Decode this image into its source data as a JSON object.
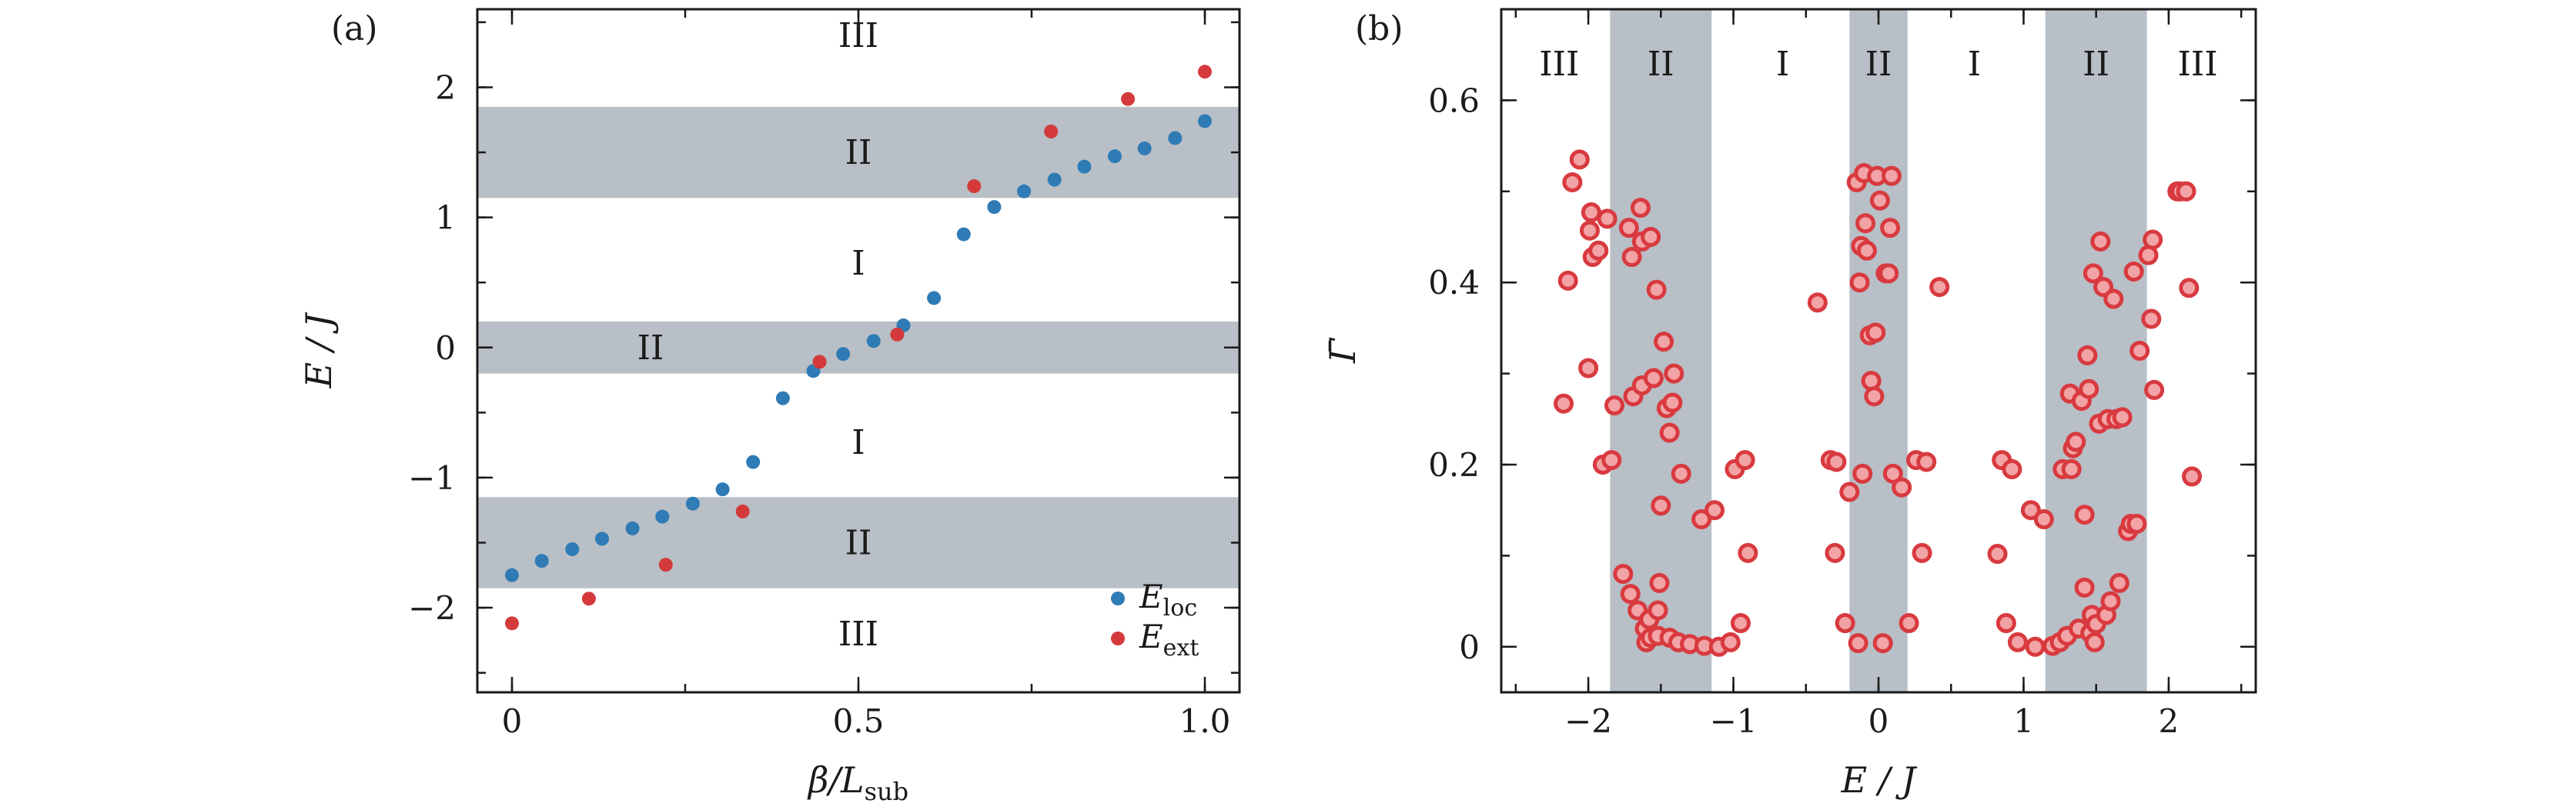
{
  "colors": {
    "band": "#b8bfc6",
    "loc": "#2f7bb5",
    "ext": "#d43a3c",
    "gamma": "#d83a3f",
    "axis": "#1a1a1a"
  },
  "chart_data": [
    {
      "panel": "(a)",
      "type": "scatter",
      "xlabel": {
        "main": "β/L",
        "sub": "sub"
      },
      "ylabel": {
        "main": "E / J"
      },
      "xlim": [
        -0.05,
        1.05
      ],
      "ylim": [
        -2.65,
        2.6
      ],
      "xticks": [
        {
          "v": 0,
          "label": "0"
        },
        {
          "v": 0.5,
          "label": "0.5"
        },
        {
          "v": 1.0,
          "label": "1.0"
        }
      ],
      "yticks": [
        {
          "v": -2,
          "label": "−2"
        },
        {
          "v": -1,
          "label": "−1"
        },
        {
          "v": 0,
          "label": "0"
        },
        {
          "v": 1,
          "label": "1"
        },
        {
          "v": 2,
          "label": "2"
        }
      ],
      "bands": [
        [
          1.15,
          1.85
        ],
        [
          -0.2,
          0.2
        ],
        [
          -1.85,
          -1.15
        ]
      ],
      "region_labels": [
        {
          "text": "III",
          "x": 0.5,
          "y": 2.4
        },
        {
          "text": "II",
          "x": 0.5,
          "y": 1.5
        },
        {
          "text": "I",
          "x": 0.5,
          "y": 0.65
        },
        {
          "text": "II",
          "x": 0.2,
          "y": 0.0
        },
        {
          "text": "I",
          "x": 0.5,
          "y": -0.73
        },
        {
          "text": "II",
          "x": 0.5,
          "y": -1.5
        },
        {
          "text": "III",
          "x": 0.5,
          "y": -2.2
        }
      ],
      "legend": [
        {
          "key": "loc",
          "main": "E",
          "sub": "loc"
        },
        {
          "key": "ext",
          "main": "E",
          "sub": "ext"
        }
      ],
      "series": [
        {
          "name": "E_loc",
          "x": [
            0,
            0.043,
            0.087,
            0.13,
            0.174,
            0.217,
            0.261,
            0.304,
            0.348,
            0.391,
            0.435,
            0.478,
            0.522,
            0.565,
            0.609,
            0.652,
            0.696,
            0.739,
            0.783,
            0.826,
            0.87,
            0.913,
            0.957,
            1.0
          ],
          "y": [
            -1.75,
            -1.64,
            -1.55,
            -1.47,
            -1.39,
            -1.3,
            -1.2,
            -1.09,
            -0.88,
            -0.39,
            -0.18,
            -0.05,
            0.05,
            0.17,
            0.38,
            0.87,
            1.08,
            1.2,
            1.29,
            1.39,
            1.47,
            1.53,
            1.61,
            1.74
          ]
        },
        {
          "name": "E_ext",
          "x": [
            0,
            0.111,
            0.222,
            0.333,
            0.444,
            0.556,
            0.667,
            0.778,
            0.889,
            1.0
          ],
          "y": [
            -2.12,
            -1.93,
            -1.67,
            -1.26,
            -0.11,
            0.1,
            1.24,
            1.66,
            1.91,
            2.12
          ]
        }
      ]
    },
    {
      "panel": "(b)",
      "type": "scatter",
      "xlabel": {
        "main": "E / J"
      },
      "ylabel": {
        "main": "Γ̄"
      },
      "xlim": [
        -2.6,
        2.6
      ],
      "ylim": [
        -0.05,
        0.7
      ],
      "xticks": [
        {
          "v": -2,
          "label": "−2"
        },
        {
          "v": -1,
          "label": "−1"
        },
        {
          "v": 0,
          "label": "0"
        },
        {
          "v": 1,
          "label": "1"
        },
        {
          "v": 2,
          "label": "2"
        }
      ],
      "yticks": [
        {
          "v": 0,
          "label": "0"
        },
        {
          "v": 0.2,
          "label": "0.2"
        },
        {
          "v": 0.4,
          "label": "0.4"
        },
        {
          "v": 0.6,
          "label": "0.6"
        }
      ],
      "bands": [
        [
          -1.85,
          -1.15
        ],
        [
          -0.2,
          0.2
        ],
        [
          1.15,
          1.85
        ]
      ],
      "region_labels": [
        {
          "text": "III",
          "x": -2.2,
          "y": 0.64
        },
        {
          "text": "II",
          "x": -1.5,
          "y": 0.64
        },
        {
          "text": "I",
          "x": -0.66,
          "y": 0.64
        },
        {
          "text": "II",
          "x": 0.0,
          "y": 0.64
        },
        {
          "text": "I",
          "x": 0.66,
          "y": 0.64
        },
        {
          "text": "II",
          "x": 1.5,
          "y": 0.64
        },
        {
          "text": "III",
          "x": 2.2,
          "y": 0.64
        }
      ],
      "series": [
        {
          "name": "Gamma",
          "points": [
            [
              -2.17,
              0.267
            ],
            [
              -2.14,
              0.402
            ],
            [
              -2.11,
              0.51
            ],
            [
              -2.06,
              0.535
            ],
            [
              -2.0,
              0.306
            ],
            [
              -1.99,
              0.457
            ],
            [
              -1.98,
              0.477
            ],
            [
              -1.97,
              0.428
            ],
            [
              -1.93,
              0.435
            ],
            [
              -1.9,
              0.2
            ],
            [
              -1.87,
              0.47
            ],
            [
              -1.84,
              0.205
            ],
            [
              -1.82,
              0.265
            ],
            [
              -1.76,
              0.08
            ],
            [
              -1.72,
              0.46
            ],
            [
              -1.71,
              0.058
            ],
            [
              -1.7,
              0.428
            ],
            [
              -1.69,
              0.275
            ],
            [
              -1.66,
              0.04
            ],
            [
              -1.64,
              0.482
            ],
            [
              -1.63,
              0.445
            ],
            [
              -1.63,
              0.287
            ],
            [
              -1.61,
              0.02
            ],
            [
              -1.6,
              0.005
            ],
            [
              -1.58,
              0.03
            ],
            [
              -1.57,
              0.45
            ],
            [
              -1.57,
              0.01
            ],
            [
              -1.55,
              0.295
            ],
            [
              -1.53,
              0.392
            ],
            [
              -1.52,
              0.04
            ],
            [
              -1.52,
              0.012
            ],
            [
              -1.51,
              0.07
            ],
            [
              -1.5,
              0.155
            ],
            [
              -1.48,
              0.335
            ],
            [
              -1.46,
              0.262
            ],
            [
              -1.44,
              0.01
            ],
            [
              -1.44,
              0.235
            ],
            [
              -1.42,
              0.268
            ],
            [
              -1.41,
              0.3
            ],
            [
              -1.38,
              0.005
            ],
            [
              -1.36,
              0.19
            ],
            [
              -1.3,
              0.003
            ],
            [
              -1.22,
              0.14
            ],
            [
              -1.2,
              0.001
            ],
            [
              -1.13,
              0.15
            ],
            [
              -1.1,
              0.0
            ],
            [
              -1.02,
              0.005
            ],
            [
              -0.99,
              0.195
            ],
            [
              -0.95,
              0.026
            ],
            [
              -0.92,
              0.205
            ],
            [
              -0.9,
              0.103
            ],
            [
              -0.42,
              0.378
            ],
            [
              -0.33,
              0.205
            ],
            [
              -0.3,
              0.103
            ],
            [
              -0.29,
              0.203
            ],
            [
              -0.23,
              0.026
            ],
            [
              -0.2,
              0.17
            ],
            [
              -0.15,
              0.51
            ],
            [
              -0.14,
              0.004
            ],
            [
              -0.13,
              0.4
            ],
            [
              -0.12,
              0.44
            ],
            [
              -0.11,
              0.19
            ],
            [
              -0.1,
              0.52
            ],
            [
              -0.09,
              0.465
            ],
            [
              -0.08,
              0.435
            ],
            [
              -0.06,
              0.342
            ],
            [
              -0.05,
              0.292
            ],
            [
              -0.03,
              0.275
            ],
            [
              -0.02,
              0.345
            ],
            [
              -0.01,
              0.517
            ],
            [
              0.01,
              0.49
            ],
            [
              0.03,
              0.004
            ],
            [
              0.05,
              0.41
            ],
            [
              0.07,
              0.41
            ],
            [
              0.08,
              0.46
            ],
            [
              0.09,
              0.517
            ],
            [
              0.1,
              0.19
            ],
            [
              0.16,
              0.175
            ],
            [
              0.21,
              0.026
            ],
            [
              0.26,
              0.205
            ],
            [
              0.3,
              0.103
            ],
            [
              0.33,
              0.203
            ],
            [
              0.42,
              0.395
            ],
            [
              0.82,
              0.102
            ],
            [
              0.85,
              0.205
            ],
            [
              0.88,
              0.026
            ],
            [
              0.92,
              0.195
            ],
            [
              0.96,
              0.005
            ],
            [
              1.05,
              0.15
            ],
            [
              1.08,
              0.0
            ],
            [
              1.14,
              0.14
            ],
            [
              1.2,
              0.001
            ],
            [
              1.25,
              0.005
            ],
            [
              1.27,
              0.195
            ],
            [
              1.3,
              0.012
            ],
            [
              1.32,
              0.278
            ],
            [
              1.33,
              0.195
            ],
            [
              1.34,
              0.218
            ],
            [
              1.36,
              0.225
            ],
            [
              1.38,
              0.02
            ],
            [
              1.4,
              0.27
            ],
            [
              1.42,
              0.145
            ],
            [
              1.42,
              0.065
            ],
            [
              1.44,
              0.32
            ],
            [
              1.45,
              0.283
            ],
            [
              1.46,
              0.015
            ],
            [
              1.47,
              0.035
            ],
            [
              1.48,
              0.41
            ],
            [
              1.49,
              0.005
            ],
            [
              1.5,
              0.025
            ],
            [
              1.52,
              0.245
            ],
            [
              1.53,
              0.445
            ],
            [
              1.55,
              0.395
            ],
            [
              1.57,
              0.035
            ],
            [
              1.58,
              0.25
            ],
            [
              1.6,
              0.05
            ],
            [
              1.62,
              0.382
            ],
            [
              1.64,
              0.25
            ],
            [
              1.66,
              0.07
            ],
            [
              1.68,
              0.252
            ],
            [
              1.72,
              0.127
            ],
            [
              1.74,
              0.135
            ],
            [
              1.76,
              0.412
            ],
            [
              1.78,
              0.135
            ],
            [
              1.8,
              0.325
            ],
            [
              1.86,
              0.43
            ],
            [
              1.88,
              0.36
            ],
            [
              1.89,
              0.447
            ],
            [
              1.9,
              0.282
            ],
            [
              2.06,
              0.5
            ],
            [
              2.08,
              0.5
            ],
            [
              2.12,
              0.5
            ],
            [
              2.14,
              0.394
            ],
            [
              2.16,
              0.187
            ]
          ]
        }
      ]
    }
  ]
}
